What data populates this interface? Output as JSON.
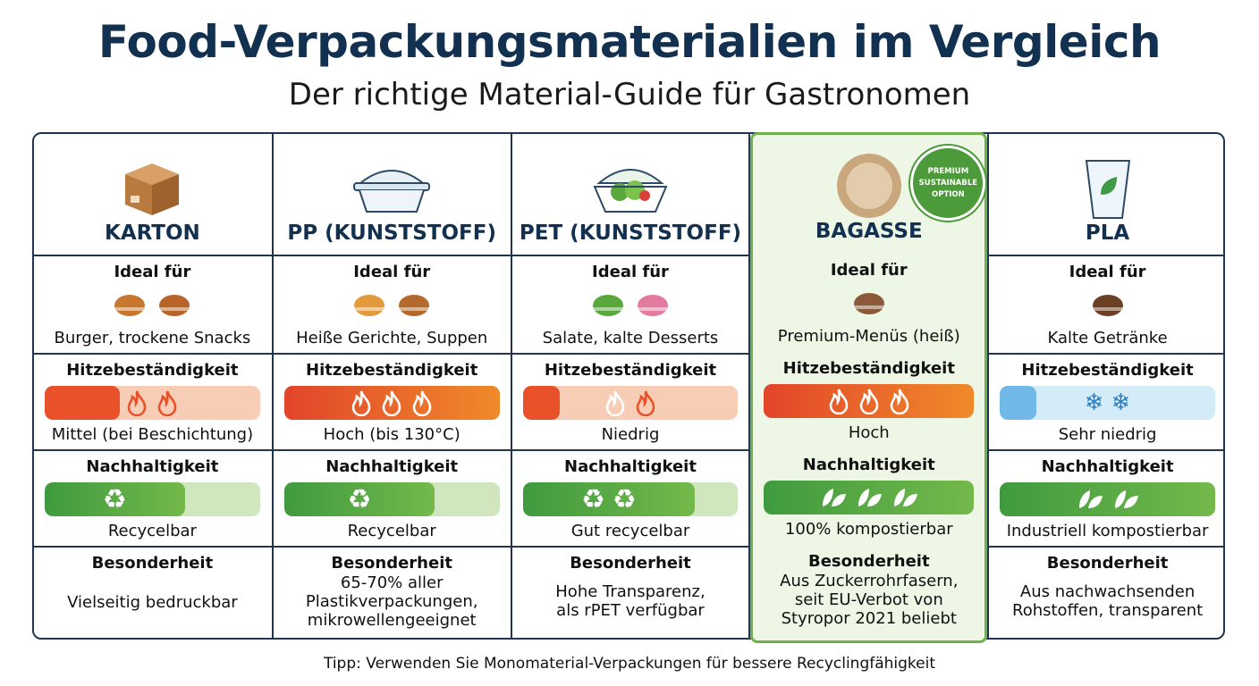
{
  "header": {
    "title": "Food-Verpackungsmaterialien im Vergleich",
    "subtitle": "Der richtige Material-Guide für Gastronomen"
  },
  "columns": [
    {
      "name": "KARTON",
      "ideal_label": "Ideal für",
      "ideal": "Burger, trockene Snacks",
      "heat_label": "Hitzebeständigkeit",
      "heat": "Mittel (bei Beschichtung)",
      "sustain_label": "Nachhaltigkeit",
      "sustain": "Recycelbar",
      "special_label": "Besonderheit",
      "special": [
        "Vielseitig bedruckbar"
      ]
    },
    {
      "name": "PP (KUNSTSTOFF)",
      "ideal_label": "Ideal für",
      "ideal": "Heiße Gerichte, Suppen",
      "heat_label": "Hitzebeständigkeit",
      "heat": "Hoch (bis 130°C)",
      "sustain_label": "Nachhaltigkeit",
      "sustain": "Recycelbar",
      "special_label": "Besonderheit",
      "special": [
        "65-70% aller",
        "Plastikverpackungen,",
        "mikrowellengeeignet"
      ]
    },
    {
      "name": "PET (KUNSTSTOFF)",
      "ideal_label": "Ideal für",
      "ideal": "Salate, kalte Desserts",
      "heat_label": "Hitzebeständigkeit",
      "heat": "Niedrig",
      "sustain_label": "Nachhaltigkeit",
      "sustain": "Gut recycelbar",
      "special_label": "Besonderheit",
      "special": [
        "Hohe Transparenz,",
        "als rPET verfügbar"
      ]
    },
    {
      "name": "BAGASSE",
      "badge": [
        "PREMIUM",
        "SUSTAINABLE",
        "OPTION"
      ],
      "ideal_label": "Ideal für",
      "ideal": "Premium-Menüs (heiß)",
      "heat_label": "Hitzebeständigkeit",
      "heat": "Hoch",
      "sustain_label": "Nachhaltigkeit",
      "sustain": "100% kompostierbar",
      "special_label": "Besonderheit",
      "special": [
        "Aus Zuckerrohrfasern,",
        "seit EU-Verbot von",
        "Styropor 2021 beliebt"
      ]
    },
    {
      "name": "PLA",
      "ideal_label": "Ideal für",
      "ideal": "Kalte Getränke",
      "heat_label": "Hitzebeständigkeit",
      "heat": "Sehr niedrig",
      "sustain_label": "Nachhaltigkeit",
      "sustain": "Industriell kompostierbar",
      "special_label": "Besonderheit",
      "special": [
        "Aus nachwachsenden",
        "Rohstoffen, transparent"
      ]
    }
  ],
  "footer": {
    "tip": "Tipp: Verwenden Sie Monomaterial-Verpackungen für bessere Recyclingfähigkeit"
  }
}
